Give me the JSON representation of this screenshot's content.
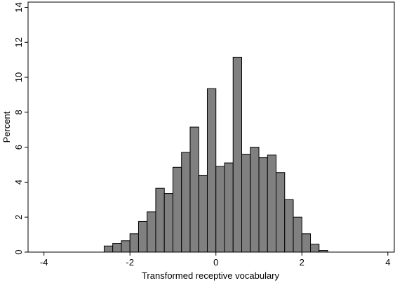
{
  "chart_data": {
    "type": "histogram",
    "xlabel": "Transformed receptive vocabulary",
    "ylabel": "Percent",
    "bins": [
      -2.6,
      -2.4,
      -2.2,
      -2.0,
      -1.8,
      -1.6,
      -1.4,
      -1.2,
      -1.0,
      -0.8,
      -0.6,
      -0.4,
      -0.2,
      0,
      0.2,
      0.4,
      0.6,
      0.8,
      1.0,
      1.2,
      1.4,
      1.6,
      1.8,
      2.0,
      2.2,
      2.4,
      2.6
    ],
    "values": [
      0.35,
      0.5,
      0.65,
      1.05,
      1.75,
      2.3,
      3.65,
      3.35,
      4.85,
      5.7,
      7.15,
      4.4,
      9.35,
      4.9,
      5.1,
      11.15,
      5.6,
      6.0,
      5.4,
      5.55,
      4.55,
      3.0,
      2.0,
      1.05,
      0.45,
      0.1
    ],
    "color": "#808080",
    "xlim": [
      -4.37,
      4.15
    ],
    "ylim": [
      0,
      14.3
    ],
    "xticks": [
      -4,
      -2,
      0,
      2,
      4
    ],
    "yticks": [
      0,
      2,
      4,
      6,
      8,
      10,
      12,
      14
    ]
  }
}
